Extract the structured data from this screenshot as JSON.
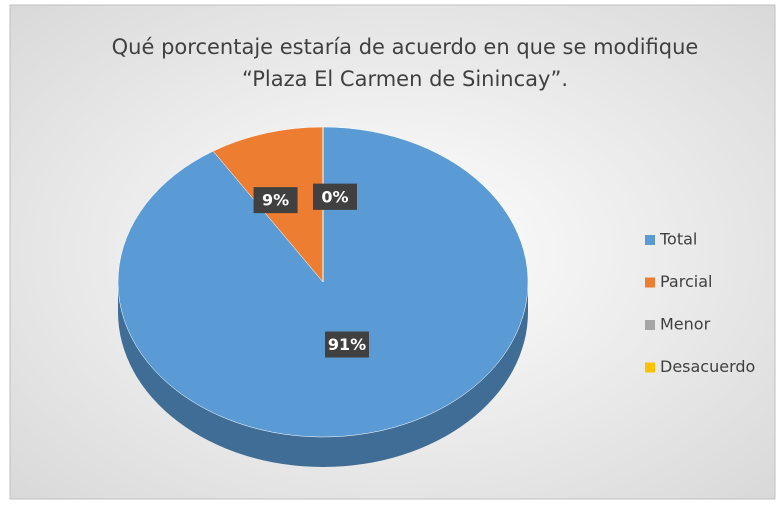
{
  "chart_data": {
    "type": "pie",
    "title": [
      "Qué porcentaje estaría de acuerdo en que se modifique",
      "“Plaza El Carmen de Sinincay”."
    ],
    "categories": [
      "Total",
      "Parcial",
      "Menor",
      "Desacuerdo"
    ],
    "values": [
      91,
      9,
      0,
      0
    ],
    "value_labels": [
      "91%",
      "9%",
      "0%",
      "0%"
    ],
    "colors": [
      "#5b9bd5",
      "#ed7d31",
      "#a5a5a5",
      "#ffc000"
    ],
    "legend": "right"
  }
}
